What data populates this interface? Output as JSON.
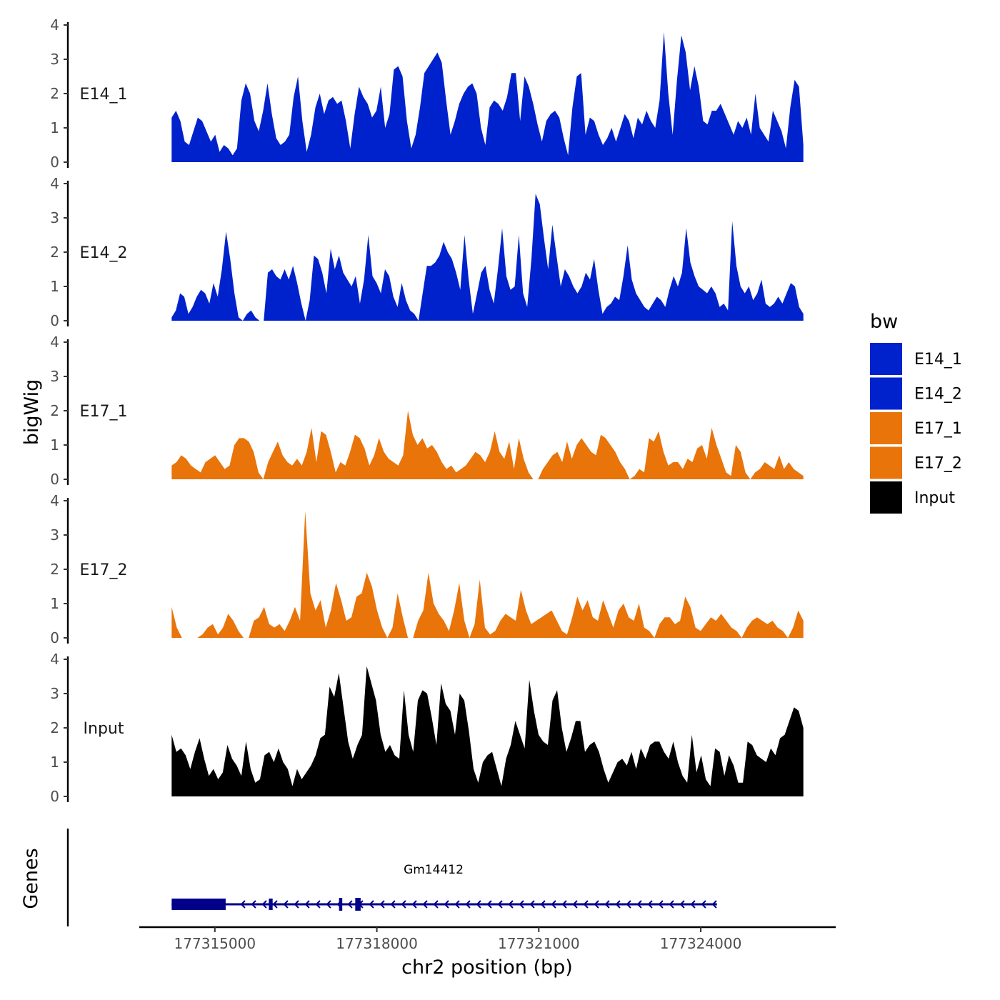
{
  "chart_data": {
    "type": "area",
    "chromosome": "chr2",
    "xlabel": "chr2 position (bp)",
    "ylabel": "bigWig",
    "genes_label": "Genes",
    "xlim": [
      177313600,
      177326500
    ],
    "x_ticks": [
      177315000,
      177318000,
      177321000,
      177324000
    ],
    "x_tick_labels": [
      "177315000",
      "177318000",
      "177321000",
      "177324000"
    ],
    "ylim": [
      0,
      4
    ],
    "y_ticks": [
      0,
      1,
      2,
      3,
      4
    ],
    "y_tick_labels": [
      "0",
      "1",
      "2",
      "3",
      "4"
    ],
    "signal_start": 177314200,
    "signal_end": 177325900,
    "colors": {
      "E14": "#0022cc",
      "E17": "#e8740a",
      "Input": "#000000",
      "gene": "#00008b"
    },
    "legend": {
      "title": "bw",
      "entries": [
        {
          "name": "E14_1",
          "color": "#0022cc"
        },
        {
          "name": "E14_2",
          "color": "#0022cc"
        },
        {
          "name": "E17_1",
          "color": "#e8740a"
        },
        {
          "name": "E17_2",
          "color": "#e8740a"
        },
        {
          "name": "Input",
          "color": "#000000"
        }
      ]
    },
    "tracks": [
      {
        "name": "E14_1",
        "color": "#0022cc",
        "values": [
          1.3,
          1.5,
          1.2,
          0.6,
          0.5,
          0.9,
          1.3,
          1.2,
          0.9,
          0.6,
          0.8,
          0.3,
          0.5,
          0.4,
          0.2,
          0.4,
          1.8,
          2.3,
          2.0,
          1.2,
          0.9,
          1.5,
          2.3,
          1.4,
          0.7,
          0.5,
          0.6,
          0.8,
          1.9,
          2.5,
          1.2,
          0.3,
          0.8,
          1.6,
          2.0,
          1.4,
          1.8,
          1.9,
          1.7,
          1.8,
          1.2,
          0.4,
          1.4,
          2.2,
          1.9,
          1.7,
          1.3,
          1.5,
          2.2,
          1.0,
          1.4,
          2.7,
          2.8,
          2.5,
          1.2,
          0.4,
          0.8,
          1.6,
          2.6,
          2.8,
          3.0,
          3.2,
          2.9,
          1.8,
          0.8,
          1.2,
          1.7,
          2.0,
          2.2,
          2.3,
          2.0,
          1.0,
          0.5,
          1.6,
          1.8,
          1.7,
          1.5,
          1.9,
          2.6,
          2.6,
          1.2,
          2.5,
          2.2,
          1.7,
          1.1,
          0.6,
          1.2,
          1.4,
          1.5,
          1.3,
          0.7,
          0.2,
          1.6,
          2.5,
          2.6,
          0.8,
          1.3,
          1.2,
          0.8,
          0.5,
          0.7,
          1.0,
          0.6,
          1.0,
          1.4,
          1.2,
          0.7,
          1.3,
          1.1,
          1.5,
          1.2,
          1.0,
          1.8,
          3.8,
          2.0,
          0.8,
          2.4,
          3.7,
          3.2,
          2.1,
          2.8,
          2.2,
          1.2,
          1.1,
          1.5,
          1.5,
          1.7,
          1.4,
          1.1,
          0.8,
          1.2,
          1.0,
          1.3,
          0.8,
          2.0,
          1.0,
          0.8,
          0.6,
          1.5,
          1.2,
          0.9,
          0.4,
          1.6,
          2.4,
          2.2,
          0.5
        ]
      },
      {
        "name": "E14_2",
        "color": "#0022cc",
        "values": [
          0.1,
          0.3,
          0.8,
          0.7,
          0.2,
          0.4,
          0.7,
          0.9,
          0.8,
          0.5,
          1.1,
          0.7,
          1.5,
          2.6,
          1.8,
          0.8,
          0.1,
          0,
          0.2,
          0.3,
          0.1,
          0,
          0,
          1.4,
          1.5,
          1.3,
          1.2,
          1.5,
          1.2,
          1.6,
          1.1,
          0.5,
          0,
          0.6,
          1.9,
          1.8,
          1.4,
          0.8,
          2.1,
          1.5,
          1.9,
          1.4,
          1.2,
          1.0,
          1.3,
          0.5,
          1.2,
          2.5,
          1.3,
          1.1,
          0.8,
          1.5,
          1.3,
          0.7,
          0.4,
          1.1,
          0.6,
          0.3,
          0.2,
          0,
          0.8,
          1.6,
          1.6,
          1.7,
          1.9,
          2.3,
          2.0,
          1.8,
          1.4,
          0.9,
          2.5,
          1.2,
          0.2,
          0.8,
          1.4,
          1.6,
          0.9,
          0.5,
          1.5,
          2.7,
          1.3,
          0.9,
          1.0,
          2.5,
          0.8,
          0.4,
          1.8,
          3.7,
          3.4,
          2.4,
          1.5,
          2.8,
          1.9,
          1.0,
          1.5,
          1.3,
          1.0,
          0.8,
          1.0,
          1.4,
          1.2,
          1.8,
          0.9,
          0.2,
          0.4,
          0.5,
          0.7,
          0.6,
          1.3,
          2.2,
          1.2,
          0.8,
          0.6,
          0.4,
          0.3,
          0.5,
          0.7,
          0.6,
          0.4,
          0.9,
          1.3,
          1.0,
          1.4,
          2.7,
          1.7,
          1.3,
          1.0,
          0.9,
          0.8,
          1.0,
          0.8,
          0.4,
          0.5,
          0.3,
          2.9,
          1.6,
          1.0,
          0.8,
          1.0,
          0.6,
          0.8,
          1.2,
          0.5,
          0.4,
          0.5,
          0.7,
          0.5,
          0.8,
          1.1,
          1.0,
          0.4,
          0.2
        ]
      },
      {
        "name": "E17_1",
        "color": "#e8740a",
        "values": [
          0.4,
          0.5,
          0.7,
          0.6,
          0.4,
          0.3,
          0.2,
          0.5,
          0.6,
          0.7,
          0.5,
          0.3,
          0.4,
          1.0,
          1.2,
          1.2,
          1.1,
          0.8,
          0.2,
          0,
          0.5,
          0.8,
          1.1,
          0.7,
          0.5,
          0.4,
          0.6,
          0.4,
          0.8,
          1.5,
          0.5,
          1.4,
          1.3,
          0.8,
          0.2,
          0.5,
          0.4,
          0.8,
          1.3,
          1.2,
          0.9,
          0.4,
          0.7,
          1.2,
          0.8,
          0.6,
          0.5,
          0.4,
          0.7,
          2.0,
          1.3,
          1.0,
          1.2,
          0.9,
          1.0,
          0.8,
          0.5,
          0.3,
          0.4,
          0.2,
          0.3,
          0.4,
          0.6,
          0.8,
          0.7,
          0.5,
          0.8,
          1.4,
          0.8,
          0.6,
          1.1,
          0.3,
          1.2,
          0.6,
          0.2,
          0,
          0,
          0.3,
          0.5,
          0.7,
          0.8,
          0.5,
          1.1,
          0.6,
          1.0,
          1.2,
          1.0,
          0.8,
          0.7,
          1.3,
          1.2,
          1.0,
          0.8,
          0.5,
          0.3,
          0,
          0.1,
          0.3,
          0.2,
          1.2,
          1.1,
          1.4,
          0.8,
          0.4,
          0.5,
          0.5,
          0.3,
          0.6,
          0.5,
          0.9,
          1.0,
          0.6,
          1.5,
          1.0,
          0.6,
          0.2,
          0.1,
          1.0,
          0.8,
          0.2,
          0,
          0.2,
          0.3,
          0.5,
          0.4,
          0.3,
          0.7,
          0.3,
          0.5,
          0.3,
          0.2,
          0.1
        ]
      },
      {
        "name": "E17_2",
        "color": "#e8740a",
        "values": [
          0.9,
          0.3,
          0,
          0,
          0,
          0,
          0.1,
          0.3,
          0.4,
          0.1,
          0.3,
          0.7,
          0.5,
          0.2,
          0,
          0,
          0.5,
          0.6,
          0.9,
          0.4,
          0.3,
          0.4,
          0.2,
          0.5,
          0.9,
          0.5,
          3.7,
          1.3,
          0.8,
          1.1,
          0.3,
          0.8,
          1.6,
          1.1,
          0.5,
          0.6,
          1.2,
          1.3,
          1.9,
          1.5,
          0.8,
          0.3,
          0,
          0.3,
          1.3,
          0.6,
          0,
          0,
          0.5,
          0.8,
          1.9,
          1.0,
          0.7,
          0.5,
          0.2,
          0.8,
          1.6,
          0.5,
          0,
          0.4,
          1.7,
          0.3,
          0.1,
          0.2,
          0.5,
          0.7,
          0.6,
          0.5,
          1.4,
          0.8,
          0.4,
          0.5,
          0.6,
          0.7,
          0.8,
          0.5,
          0.2,
          0.1,
          0.6,
          1.2,
          0.8,
          1.1,
          0.6,
          0.5,
          1.1,
          0.7,
          0.3,
          0.8,
          1.0,
          0.6,
          0.5,
          1.0,
          0.3,
          0.2,
          0,
          0.4,
          0.6,
          0.6,
          0.4,
          0.5,
          1.2,
          0.9,
          0.3,
          0.2,
          0.4,
          0.6,
          0.5,
          0.7,
          0.5,
          0.3,
          0.2,
          0,
          0.3,
          0.5,
          0.6,
          0.5,
          0.4,
          0.5,
          0.3,
          0.2,
          0,
          0.3,
          0.8,
          0.5
        ]
      },
      {
        "name": "Input",
        "color": "#000000",
        "values": [
          1.8,
          1.3,
          1.4,
          1.2,
          0.8,
          1.3,
          1.7,
          1.1,
          0.6,
          0.8,
          0.5,
          0.7,
          1.5,
          1.1,
          0.9,
          0.6,
          1.6,
          0.8,
          0.4,
          0.5,
          1.2,
          1.3,
          1.0,
          1.4,
          1.0,
          0.8,
          0.3,
          0.8,
          0.5,
          0.7,
          0.9,
          1.2,
          1.7,
          1.8,
          3.2,
          2.9,
          3.6,
          2.6,
          1.6,
          1.1,
          1.5,
          1.8,
          3.8,
          3.3,
          2.8,
          1.8,
          1.3,
          1.5,
          1.2,
          1.1,
          3.1,
          1.8,
          1.3,
          2.8,
          3.1,
          3.0,
          2.3,
          1.5,
          3.3,
          2.7,
          2.5,
          1.8,
          3.0,
          2.8,
          1.9,
          0.8,
          0.4,
          1.0,
          1.2,
          1.3,
          0.8,
          0.3,
          1.1,
          1.5,
          2.2,
          1.8,
          1.4,
          3.4,
          2.5,
          1.8,
          1.6,
          1.5,
          2.8,
          3.1,
          2.0,
          1.3,
          1.7,
          2.2,
          2.2,
          1.3,
          1.5,
          1.6,
          1.3,
          0.8,
          0.4,
          0.7,
          1.0,
          1.1,
          0.9,
          1.3,
          0.8,
          1.4,
          1.1,
          1.5,
          1.6,
          1.6,
          1.3,
          1.1,
          1.6,
          1.0,
          0.6,
          0.4,
          1.8,
          0.7,
          1.2,
          0.5,
          0.3,
          1.4,
          1.3,
          0.6,
          1.2,
          0.9,
          0.4,
          0.4,
          1.6,
          1.5,
          1.2,
          1.1,
          1.0,
          1.4,
          1.2,
          1.7,
          1.8,
          2.2,
          2.6,
          2.5,
          2.0
        ]
      }
    ],
    "gene": {
      "name": "Gm14412",
      "strand": "-",
      "start": 177314200,
      "end": 177324300,
      "exons": [
        [
          177314200,
          177315200
        ],
        [
          177316000,
          177316070
        ],
        [
          177317300,
          177317360
        ],
        [
          177317600,
          177317700
        ]
      ],
      "intron_arrow": "‹"
    }
  }
}
